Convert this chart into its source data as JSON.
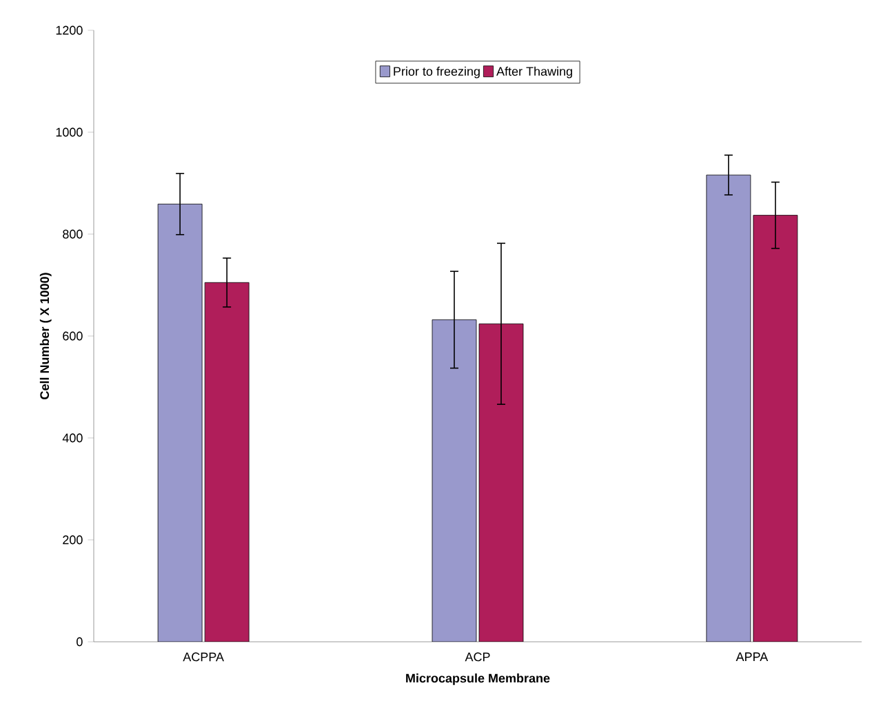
{
  "chart_data": {
    "type": "bar",
    "xlabel": "Microcapsule Membrane",
    "ylabel": "Cell Number ( X 1000)",
    "categories": [
      "ACPPA",
      "ACP",
      "APPA"
    ],
    "series": [
      {
        "name": "Prior to freezing",
        "color": "#9999cc",
        "values": [
          859,
          632,
          916
        ],
        "errors": [
          60,
          95,
          39
        ]
      },
      {
        "name": "After Thawing",
        "color": "#b01e5a",
        "values": [
          705,
          624,
          837
        ],
        "errors": [
          48,
          158,
          65
        ]
      }
    ],
    "ylim": [
      0,
      1200
    ],
    "yticks": [
      0,
      200,
      400,
      600,
      800,
      1000,
      1200
    ],
    "grid": false,
    "legend": "top"
  }
}
